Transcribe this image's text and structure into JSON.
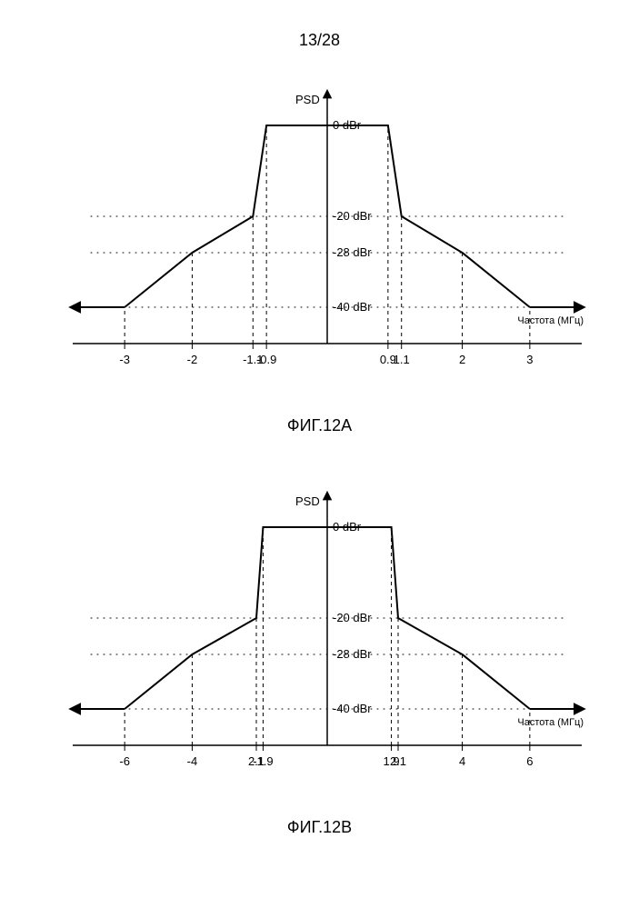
{
  "page_number": "13/28",
  "global": {
    "background_color": "#ffffff",
    "stroke_color": "#000000",
    "text_color": "#000000",
    "font_family": "Arial"
  },
  "chartA": {
    "title": "ФИГ.12A",
    "y_axis_label": "PSD",
    "x_axis_label": "Частота (МГц)",
    "y_levels": [
      {
        "label": "0 dBr",
        "db": 0
      },
      {
        "label": "-20 dBr",
        "db": -20
      },
      {
        "label": "-28 dBr",
        "db": -28
      },
      {
        "label": "-40 dBr",
        "db": -40
      }
    ],
    "x_breakpoints": [
      -3,
      -2,
      -1.1,
      -0.9,
      0.9,
      1.1,
      2,
      3
    ],
    "x_tick_labels": [
      "-3",
      "-2",
      "-1.1",
      "-0.9",
      "0.9",
      "1.1",
      "2",
      "3"
    ],
    "envelope": [
      {
        "x": -3,
        "db": -40
      },
      {
        "x": -2,
        "db": -28
      },
      {
        "x": -1.1,
        "db": -20
      },
      {
        "x": -0.9,
        "db": 0
      },
      {
        "x": 0.9,
        "db": 0
      },
      {
        "x": 1.1,
        "db": -20
      },
      {
        "x": 2,
        "db": -28
      },
      {
        "x": 3,
        "db": -40
      }
    ],
    "x_domain": [
      -3.5,
      3.5
    ],
    "line_width": 2,
    "dash_pattern": "4,4",
    "dot_pattern": "1,6",
    "tick_fontsize": 13,
    "axis_label_fontsize": 13,
    "small_label_fontsize": 11
  },
  "chartB": {
    "title": "ФИГ.12B",
    "y_axis_label": "PSD",
    "x_axis_label": "Частота (МГц)",
    "y_levels": [
      {
        "label": "0 dBr",
        "db": 0
      },
      {
        "label": "-20 dBr",
        "db": -20
      },
      {
        "label": "-28 dBr",
        "db": -28
      },
      {
        "label": "-40 dBr",
        "db": -40
      }
    ],
    "x_breakpoints": [
      -6,
      -4,
      -2.1,
      -1.9,
      1.9,
      2.1,
      4,
      6
    ],
    "x_tick_labels": [
      "-6",
      "-4",
      "2.1",
      "-1.9",
      "1.9",
      "2.1",
      "4",
      "6"
    ],
    "envelope": [
      {
        "x": -6,
        "db": -40
      },
      {
        "x": -4,
        "db": -28
      },
      {
        "x": -2.1,
        "db": -20
      },
      {
        "x": -1.9,
        "db": 0
      },
      {
        "x": 1.9,
        "db": 0
      },
      {
        "x": 2.1,
        "db": -20
      },
      {
        "x": 4,
        "db": -28
      },
      {
        "x": 6,
        "db": -40
      }
    ],
    "x_domain": [
      -7,
      7
    ],
    "line_width": 2,
    "dash_pattern": "4,4",
    "dot_pattern": "1,6",
    "tick_fontsize": 13,
    "axis_label_fontsize": 13,
    "small_label_fontsize": 11
  }
}
